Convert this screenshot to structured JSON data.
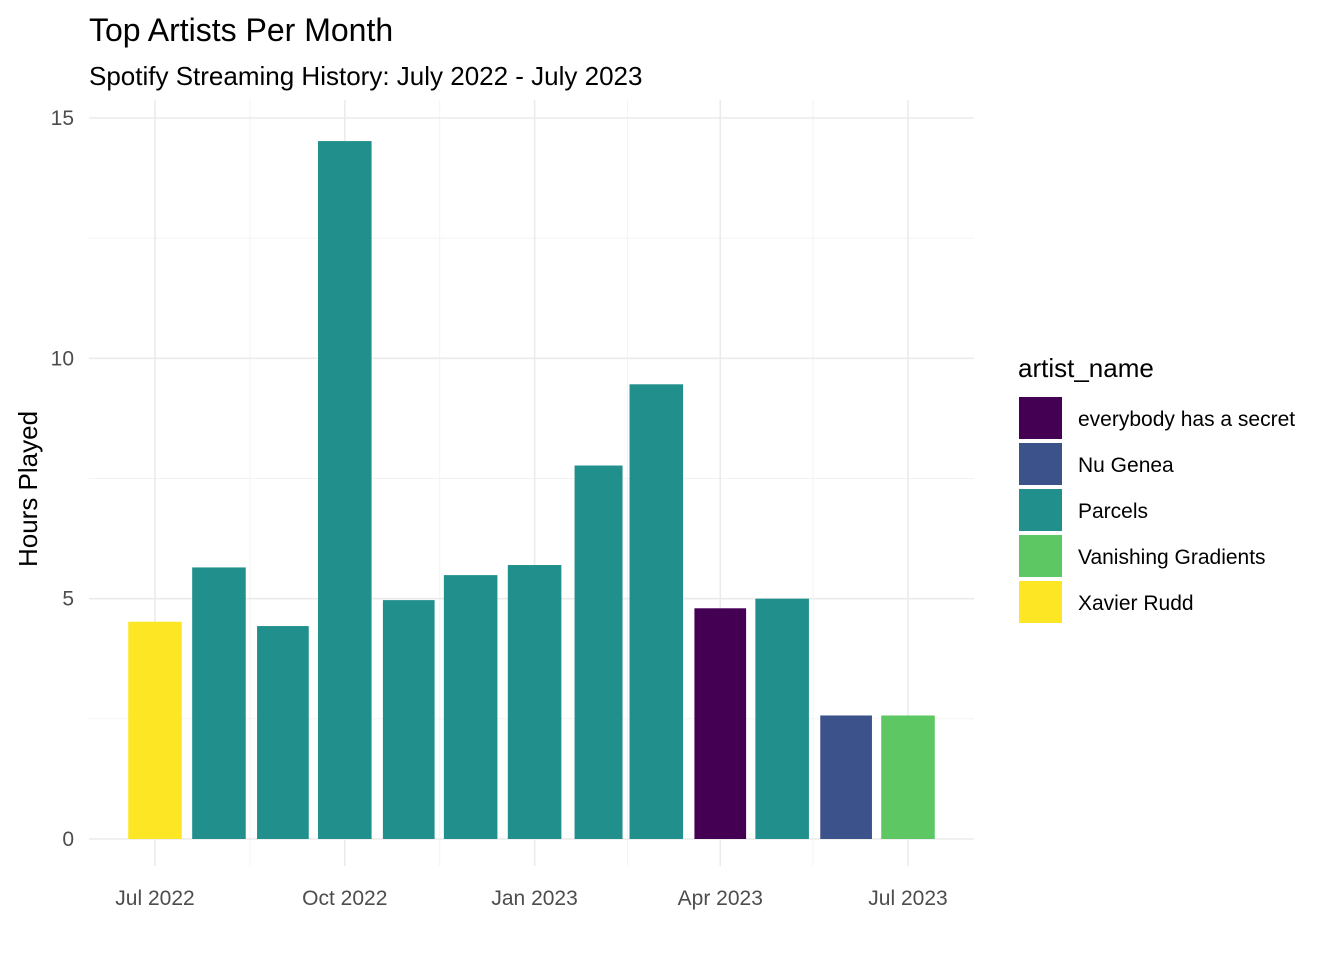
{
  "chart_data": {
    "type": "bar",
    "title": "Top Artists Per Month",
    "subtitle": "Spotify Streaming History: July 2022 - July 2023",
    "xlabel": "",
    "ylabel": "Hours Played",
    "ylim": [
      0,
      15
    ],
    "y_ticks": [
      0,
      5,
      10,
      15
    ],
    "grid": true,
    "x_ticks": [
      {
        "date": "2022-07-01",
        "label": "Jul 2022"
      },
      {
        "date": "2022-10-01",
        "label": "Oct 2022"
      },
      {
        "date": "2023-01-01",
        "label": "Jan 2023"
      },
      {
        "date": "2023-04-01",
        "label": "Apr 2023"
      },
      {
        "date": "2023-07-01",
        "label": "Jul 2023"
      }
    ],
    "x_minor_ticks": [
      "2022-08-16",
      "2022-11-16",
      "2023-02-15",
      "2023-05-16"
    ],
    "categories": [
      "2022-07",
      "2022-08",
      "2022-09",
      "2022-10",
      "2022-11",
      "2022-12",
      "2023-01",
      "2023-02",
      "2023-03",
      "2023-04",
      "2023-05",
      "2023-06",
      "2023-07"
    ],
    "values": [
      4.52,
      5.65,
      4.43,
      14.52,
      4.97,
      5.49,
      5.7,
      7.77,
      9.46,
      4.8,
      5.0,
      2.57,
      2.57
    ],
    "artists": [
      "Xavier Rudd",
      "Parcels",
      "Parcels",
      "Parcels",
      "Parcels",
      "Parcels",
      "Parcels",
      "Parcels",
      "Parcels",
      "everybody has a secret",
      "Parcels",
      "Nu Genea",
      "Vanishing Gradients"
    ],
    "legend": {
      "title": "artist_name",
      "position": "right",
      "items": [
        {
          "name": "everybody has a secret",
          "color": "#440154"
        },
        {
          "name": "Nu Genea",
          "color": "#3B528B"
        },
        {
          "name": "Parcels",
          "color": "#21908C"
        },
        {
          "name": "Vanishing Gradients",
          "color": "#5DC863"
        },
        {
          "name": "Xavier Rudd",
          "color": "#FDE725"
        }
      ]
    }
  }
}
